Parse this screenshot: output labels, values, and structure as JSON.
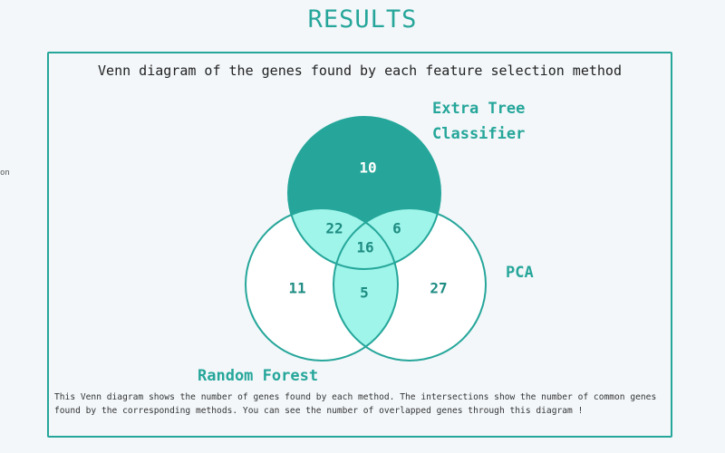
{
  "page": {
    "title": "RESULTS",
    "side_fragment": "on"
  },
  "diagram": {
    "caption": "Venn diagram of the genes found by each feature selection method",
    "sets": {
      "extra_tree": {
        "label_line1": "Extra Tree",
        "label_line2": "Classifier"
      },
      "random_forest": {
        "label": "Random Forest"
      },
      "pca": {
        "label": "PCA"
      }
    },
    "regions": {
      "extra_tree_only": "10",
      "random_forest_only": "11",
      "pca_only": "27",
      "extra_tree_and_random_forest": "22",
      "extra_tree_and_pca": "6",
      "random_forest_and_pca": "5",
      "all_three": "16"
    },
    "colors": {
      "accent": "#26a69a",
      "single_set_fill": "#26a69a",
      "overlap_fill": "#9ff5ea",
      "white_fill": "#ffffff",
      "background": "#f3f7fa"
    }
  },
  "description": "This Venn diagram shows the number of genes found by each method. The intersections show the number of common genes found by the corresponding methods. You can see the number of overlapped genes through this diagram !"
}
